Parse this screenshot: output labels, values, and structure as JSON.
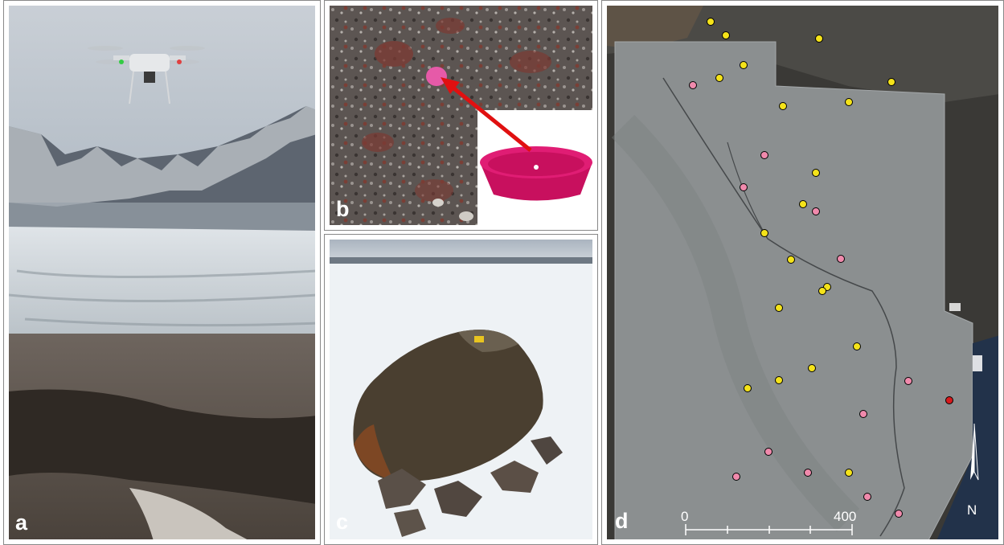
{
  "panels": {
    "a": {
      "label": "a",
      "subject": "drone-over-glacier"
    },
    "b": {
      "label": "b",
      "subject": "ground-control-marker"
    },
    "c": {
      "label": "c",
      "subject": "boulder-on-snow"
    },
    "d": {
      "label": "d",
      "subject": "orthomosaic-map"
    }
  },
  "map": {
    "scale_labels": [
      "0",
      "400"
    ],
    "north_label": "N",
    "colors": {
      "yellow": "#f5e31a",
      "pink": "#f08aac",
      "red": "#d7191c"
    }
  }
}
